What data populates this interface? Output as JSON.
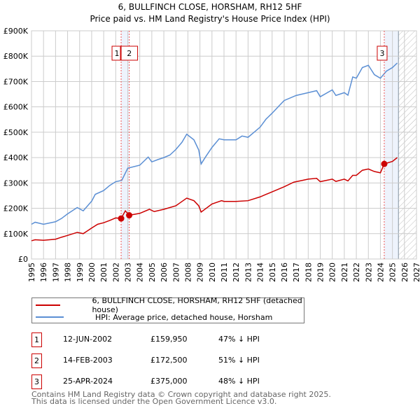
{
  "chart_data": {
    "type": "line",
    "title": "6, BULLFINCH CLOSE, HORSHAM, RH12 5HF",
    "subtitle": "Price paid vs. HM Land Registry's House Price Index (HPI)",
    "xlim": [
      1995,
      2027
    ],
    "ylim": [
      0,
      900000
    ],
    "y_ticks": [
      {
        "v": 0,
        "label": "£0"
      },
      {
        "v": 100000,
        "label": "£100K"
      },
      {
        "v": 200000,
        "label": "£200K"
      },
      {
        "v": 300000,
        "label": "£300K"
      },
      {
        "v": 400000,
        "label": "£400K"
      },
      {
        "v": 500000,
        "label": "£500K"
      },
      {
        "v": 600000,
        "label": "£600K"
      },
      {
        "v": 700000,
        "label": "£700K"
      },
      {
        "v": 800000,
        "label": "£800K"
      },
      {
        "v": 900000,
        "label": "£900K"
      }
    ],
    "x_ticks": [
      "1995",
      "1996",
      "1997",
      "1998",
      "1999",
      "2000",
      "2001",
      "2002",
      "2003",
      "2004",
      "2005",
      "2006",
      "2007",
      "2008",
      "2009",
      "2010",
      "2011",
      "2012",
      "2013",
      "2014",
      "2015",
      "2016",
      "2017",
      "2018",
      "2019",
      "2020",
      "2021",
      "2022",
      "2023",
      "2024",
      "2025",
      "2026",
      "2027"
    ],
    "grid": true,
    "series": [
      {
        "name": "6, BULLFINCH CLOSE, HORSHAM, RH12 5HF (detached house)",
        "color": "#cc0000",
        "x": [
          1995,
          1995.3,
          1996,
          1997,
          1997.5,
          1998,
          1998.8,
          1999.3,
          2000,
          2000.5,
          2001,
          2001.5,
          2002,
          2002.45,
          2002.8,
          2003.12,
          2004,
          2004.8,
          2005.2,
          2006,
          2007,
          2007.9,
          2008.5,
          2008.9,
          2009.1,
          2010,
          2010.8,
          2011,
          2012,
          2013,
          2014,
          2015,
          2016,
          2016.8,
          2017.5,
          2018,
          2018.7,
          2019,
          2020,
          2020.3,
          2021,
          2021.3,
          2021.7,
          2022,
          2022.5,
          2023,
          2023.5,
          2024,
          2024.32,
          2025,
          2025.4
        ],
        "y": [
          72000,
          76000,
          74000,
          78000,
          86000,
          93000,
          105000,
          100000,
          122000,
          137000,
          143000,
          152000,
          162000,
          159950,
          190000,
          172500,
          180000,
          196000,
          187000,
          196000,
          210000,
          240000,
          230000,
          210000,
          185000,
          217000,
          230000,
          227000,
          227000,
          230000,
          245000,
          265000,
          285000,
          303000,
          310000,
          315000,
          318000,
          305000,
          315000,
          306000,
          315000,
          308000,
          330000,
          330000,
          350000,
          355000,
          345000,
          340000,
          375000,
          385000,
          400000
        ]
      },
      {
        "name": "HPI: Average price, detached house, Horsham",
        "color": "#5b8fd4",
        "x": [
          1995,
          1995.3,
          1996,
          1997,
          1997.5,
          1998,
          1998.8,
          1999.3,
          2000,
          2000.3,
          2001,
          2001.5,
          2002,
          2002.5,
          2003,
          2004,
          2004.7,
          2005,
          2005.5,
          2006,
          2006.5,
          2007,
          2007.5,
          2007.9,
          2008.5,
          2008.9,
          2009.1,
          2009.5,
          2010,
          2010.6,
          2011,
          2012,
          2012.5,
          2013,
          2013.5,
          2014,
          2014.5,
          2015,
          2015.5,
          2016,
          2017,
          2018,
          2018.7,
          2019,
          2020,
          2020.3,
          2021,
          2021.3,
          2021.7,
          2022,
          2022.5,
          2023,
          2023.5,
          2024,
          2024.5,
          2025,
          2025.4
        ],
        "y": [
          137000,
          145000,
          137000,
          147000,
          160000,
          178000,
          203000,
          190000,
          228000,
          255000,
          270000,
          290000,
          305000,
          310000,
          358000,
          370000,
          402000,
          383000,
          392000,
          400000,
          410000,
          432000,
          460000,
          492000,
          470000,
          430000,
          375000,
          405000,
          440000,
          474000,
          470000,
          470000,
          485000,
          480000,
          500000,
          520000,
          552000,
          575000,
          600000,
          625000,
          645000,
          656000,
          664000,
          640000,
          667000,
          645000,
          656000,
          646000,
          718000,
          713000,
          755000,
          764000,
          727000,
          713000,
          741000,
          755000,
          773000
        ]
      }
    ],
    "sales": [
      {
        "id": "1",
        "date": "12-JUN-2002",
        "x": 2002.45,
        "price": "£159,950",
        "value": 159950,
        "hpi": "47% ↓ HPI"
      },
      {
        "id": "2",
        "date": "14-FEB-2003",
        "x": 2003.12,
        "price": "£172,500",
        "value": 172500,
        "hpi": "51% ↓ HPI"
      },
      {
        "id": "3",
        "date": "25-APR-2024",
        "x": 2024.32,
        "price": "£375,000",
        "value": 375000,
        "hpi": "48% ↓ HPI"
      }
    ],
    "shaded_ranges": [
      [
        2002.45,
        2003.12
      ],
      [
        2024.32,
        2025.5
      ]
    ],
    "forecast_hatch": [
      2025.5,
      2027
    ],
    "legend_placement": "below"
  },
  "footer": {
    "line1": "Contains HM Land Registry data © Crown copyright and database right 2025.",
    "line2": "This data is licensed under the Open Government Licence v3.0."
  }
}
